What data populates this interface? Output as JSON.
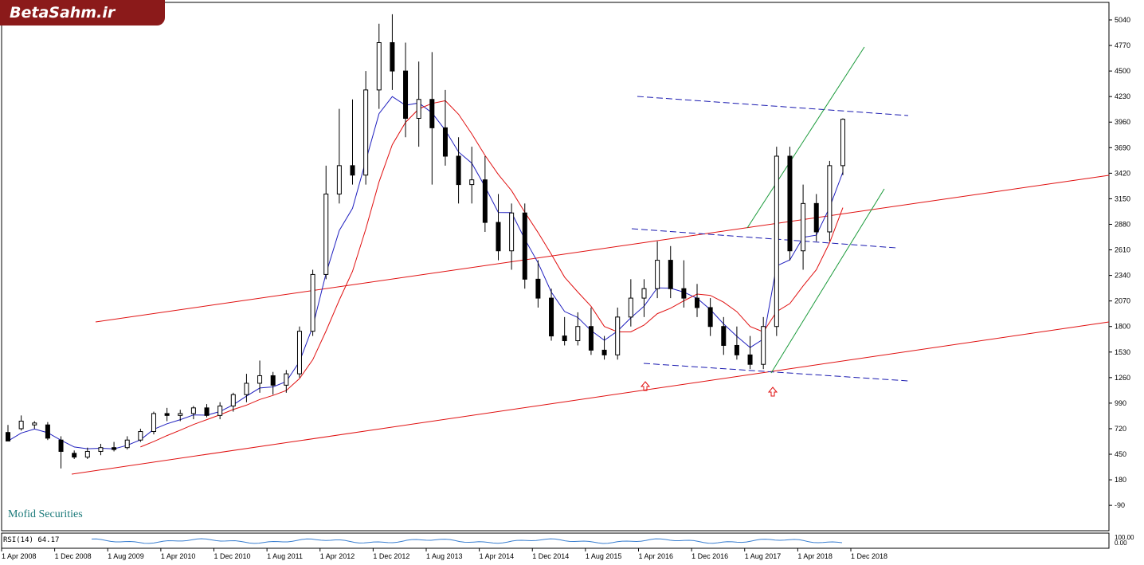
{
  "brand": {
    "logo_text": "BetaSahm.ir",
    "watermark": "Mofid Securities"
  },
  "indicator": {
    "label": "RSI(14) 64.17",
    "axis_labels": [
      "100.00",
      "0.00"
    ]
  },
  "colors": {
    "bull": "#ffffff",
    "bear": "#000000",
    "ma_fast": "#1f1fbf",
    "ma_slow": "#e01010",
    "channel_red": "#e01010",
    "channel_green": "#1a9a3a",
    "channel_blue": "#1a1ab0",
    "rsi": "#3a7fd0"
  },
  "chart_data": {
    "type": "candlestick",
    "y_ticks": [
      5040,
      4770,
      4500,
      4230,
      3960,
      3690,
      3420,
      3150,
      2880,
      2610,
      2340,
      2070,
      1800,
      1530,
      1260,
      990,
      720,
      450,
      180,
      -90
    ],
    "x_ticks": [
      "1 Apr 2008",
      "1 Dec 2008",
      "1 Aug 2009",
      "1 Apr 2010",
      "1 Dec 2010",
      "1 Aug 2011",
      "1 Apr 2012",
      "1 Dec 2012",
      "1 Aug 2013",
      "1 Apr 2014",
      "1 Dec 2014",
      "1 Aug 2015",
      "1 Apr 2016",
      "1 Dec 2016",
      "1 Aug 2017",
      "1 Apr 2018",
      "1 Dec 2018"
    ],
    "candle_sample": [
      [
        680,
        760,
        590,
        590
      ],
      [
        720,
        860,
        700,
        800
      ],
      [
        760,
        800,
        720,
        780
      ],
      [
        760,
        790,
        600,
        620
      ],
      [
        600,
        640,
        300,
        480
      ],
      [
        460,
        490,
        400,
        420
      ],
      [
        420,
        520,
        400,
        480
      ],
      [
        480,
        560,
        440,
        520
      ],
      [
        520,
        580,
        480,
        500
      ],
      [
        520,
        640,
        500,
        600
      ],
      [
        600,
        720,
        580,
        690
      ],
      [
        690,
        900,
        660,
        880
      ],
      [
        880,
        940,
        800,
        860
      ],
      [
        860,
        920,
        800,
        880
      ],
      [
        880,
        960,
        820,
        940
      ],
      [
        940,
        980,
        840,
        860
      ],
      [
        860,
        1000,
        820,
        960
      ],
      [
        960,
        1100,
        900,
        1080
      ],
      [
        1080,
        1300,
        1000,
        1200
      ],
      [
        1200,
        1440,
        1100,
        1280
      ],
      [
        1280,
        1320,
        1080,
        1180
      ],
      [
        1180,
        1340,
        1100,
        1300
      ],
      [
        1300,
        1800,
        1260,
        1750
      ],
      [
        1750,
        2400,
        1700,
        2350
      ],
      [
        2350,
        3500,
        2300,
        3200
      ],
      [
        3200,
        4100,
        3100,
        3500
      ],
      [
        3500,
        4200,
        3300,
        3400
      ],
      [
        3400,
        4500,
        3300,
        4300
      ],
      [
        4300,
        5000,
        4100,
        4800
      ],
      [
        4800,
        5100,
        4300,
        4500
      ],
      [
        4500,
        4800,
        3800,
        4000
      ],
      [
        4000,
        4600,
        3700,
        4200
      ],
      [
        4200,
        4700,
        3300,
        3900
      ],
      [
        3900,
        4300,
        3500,
        3600
      ],
      [
        3600,
        3800,
        3100,
        3300
      ],
      [
        3300,
        3700,
        3100,
        3350
      ],
      [
        3350,
        3600,
        2800,
        2900
      ],
      [
        2900,
        3200,
        2500,
        2600
      ],
      [
        2600,
        3100,
        2400,
        3000
      ],
      [
        3000,
        3100,
        2200,
        2300
      ],
      [
        2300,
        2500,
        2000,
        2100
      ],
      [
        2100,
        2200,
        1650,
        1700
      ],
      [
        1700,
        1900,
        1600,
        1650
      ],
      [
        1650,
        1950,
        1600,
        1800
      ],
      [
        1800,
        2000,
        1500,
        1550
      ],
      [
        1550,
        1700,
        1450,
        1500
      ],
      [
        1500,
        2000,
        1450,
        1900
      ],
      [
        1900,
        2300,
        1800,
        2100
      ],
      [
        2100,
        2300,
        1900,
        2200
      ],
      [
        2200,
        2700,
        2100,
        2500
      ],
      [
        2500,
        2650,
        2100,
        2200
      ],
      [
        2200,
        2500,
        2000,
        2100
      ],
      [
        2100,
        2250,
        1900,
        2000
      ],
      [
        2000,
        2100,
        1700,
        1800
      ],
      [
        1800,
        1900,
        1500,
        1600
      ],
      [
        1600,
        1800,
        1450,
        1500
      ],
      [
        1500,
        1700,
        1350,
        1400
      ],
      [
        1400,
        1900,
        1350,
        1800
      ],
      [
        1800,
        3700,
        1700,
        3600
      ],
      [
        3600,
        3700,
        2500,
        2600
      ],
      [
        2600,
        3300,
        2400,
        3100
      ],
      [
        3100,
        3200,
        2700,
        2800
      ],
      [
        2800,
        3550,
        2700,
        3500
      ],
      [
        3500,
        4000,
        3400,
        3990
      ]
    ]
  }
}
